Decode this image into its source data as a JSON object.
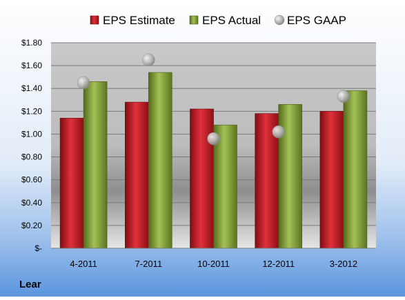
{
  "chart_data": {
    "type": "bar",
    "title": "",
    "xlabel": "",
    "ylabel": "",
    "ylim": [
      0,
      1.8
    ],
    "yticks": [
      0,
      0.2,
      0.4,
      0.6,
      0.8,
      1.0,
      1.2,
      1.4,
      1.6,
      1.8
    ],
    "ytick_labels": [
      "$-",
      "$0.20",
      "$0.40",
      "$0.60",
      "$0.80",
      "$1.00",
      "$1.20",
      "$1.40",
      "$1.60",
      "$1.80"
    ],
    "categories": [
      "4-2011",
      "7-2011",
      "10-2011",
      "12-2011",
      "3-2012"
    ],
    "grid": true,
    "legend_position": "top",
    "series": [
      {
        "name": "EPS Estimate",
        "kind": "bar",
        "color": "#C0161F",
        "values": [
          1.14,
          1.28,
          1.22,
          1.18,
          1.2
        ]
      },
      {
        "name": "EPS Actual",
        "kind": "bar",
        "color": "#7F9B32",
        "values": [
          1.46,
          1.54,
          1.08,
          1.26,
          1.38
        ]
      },
      {
        "name": "EPS GAAP",
        "kind": "marker",
        "color": "#B0B0B0",
        "values": [
          1.45,
          1.65,
          0.96,
          1.02,
          1.33
        ]
      }
    ]
  },
  "company_label": "Lear"
}
